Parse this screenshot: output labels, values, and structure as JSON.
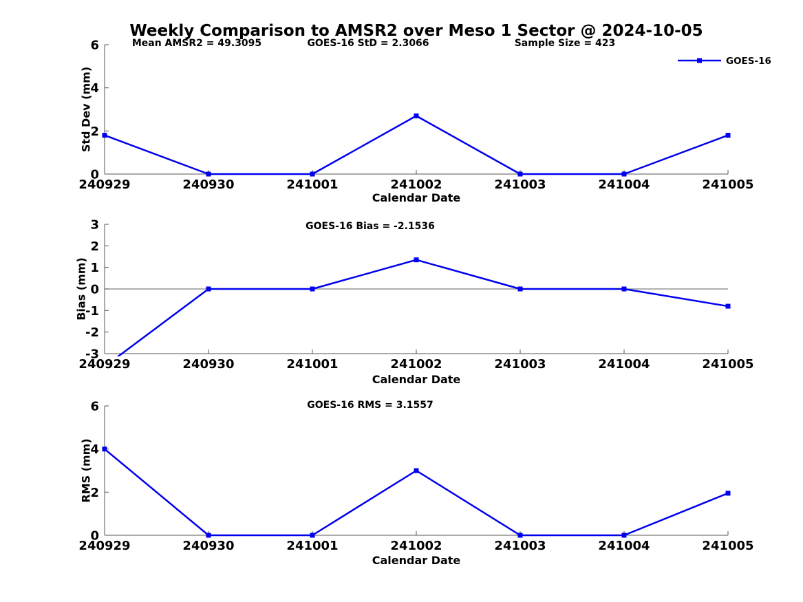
{
  "figure": {
    "title": "Weekly Comparison to AMSR2 over Meso 1 Sector @ 2024-10-05",
    "legend": {
      "label": "GOES-16"
    },
    "colors": {
      "series": "#0000EE",
      "axis": "#545454",
      "zero_line": "#808080",
      "text": "#000000",
      "background": "#ffffff"
    }
  },
  "chart_data": {
    "type": "line",
    "categories": [
      "240929",
      "240930",
      "241001",
      "241002",
      "241003",
      "241004",
      "241005"
    ],
    "xlabel": "Calendar Date",
    "legend_position": "top-right",
    "grid": false,
    "series_name": "GOES-16",
    "marker": "square",
    "subplots": [
      {
        "name": "std-dev",
        "ylabel": "Std Dev (mm)",
        "ylim": [
          0,
          6
        ],
        "yticks": [
          0,
          2,
          4,
          6
        ],
        "annotations": [
          "Mean AMSR2 = 49.3095",
          "GOES-16 StD = 2.3066",
          "Sample Size = 423"
        ],
        "values": [
          1.8,
          0,
          0,
          2.7,
          0,
          0,
          1.8
        ],
        "zero_line": false
      },
      {
        "name": "bias",
        "ylabel": "Bias (mm)",
        "ylim": [
          -3,
          3
        ],
        "yticks": [
          -3,
          -2,
          -1,
          0,
          1,
          2,
          3
        ],
        "annotations": [
          "GOES-16 Bias  = -2.1536"
        ],
        "values": [
          -3.6,
          0,
          0,
          1.35,
          0,
          0,
          -0.8
        ],
        "zero_line": true
      },
      {
        "name": "rms",
        "ylabel": "RMS (mm)",
        "ylim": [
          0,
          6
        ],
        "yticks": [
          0,
          2,
          4,
          6
        ],
        "annotations": [
          "GOES-16 RMS = 3.1557"
        ],
        "values": [
          4.0,
          0,
          0,
          3.0,
          0,
          0,
          1.95
        ],
        "zero_line": false
      }
    ]
  }
}
